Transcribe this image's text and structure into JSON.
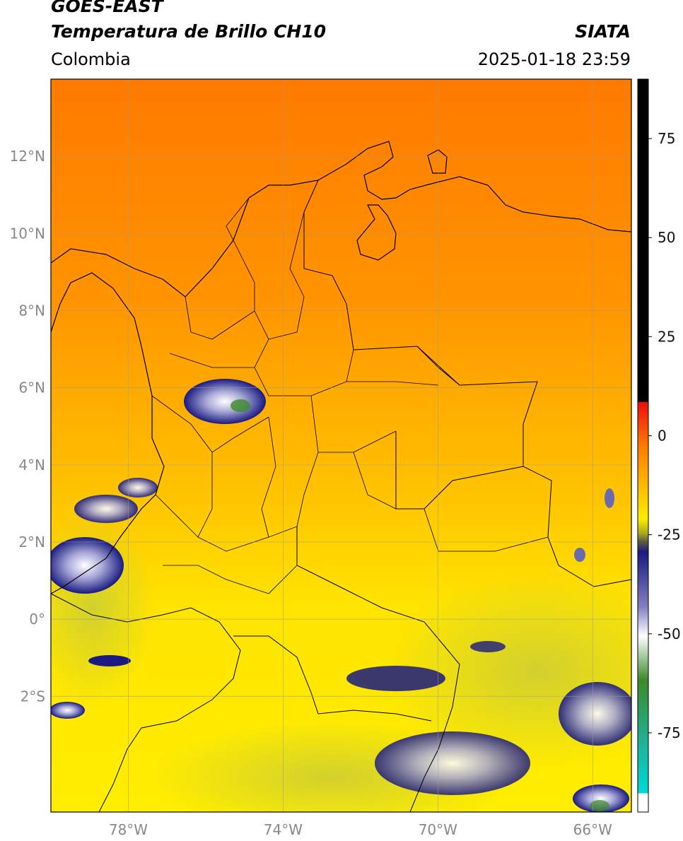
{
  "header": {
    "satellite": "GOES-EAST",
    "product": "Temperatura de Brillo CH10",
    "region": "Colombia",
    "source": "SIATA",
    "timestamp": "2025-01-18 23:59"
  },
  "map": {
    "lat_labels": [
      "12°N",
      "10°N",
      "8°N",
      "6°N",
      "4°N",
      "2°N",
      "0°",
      "2°S"
    ],
    "lon_labels": [
      "78°W",
      "74°W",
      "70°W",
      "66°W"
    ],
    "lat_values": [
      12,
      10,
      8,
      6,
      4,
      2,
      0,
      -2
    ],
    "lon_values": [
      -78,
      -74,
      -70,
      -66
    ],
    "extent": {
      "lon_min": -80,
      "lon_max": -65,
      "lat_min": -5,
      "lat_max": 14
    }
  },
  "colorbar": {
    "ticks": [
      75,
      50,
      25,
      0,
      -25,
      -50,
      -75
    ],
    "tick_labels": [
      "75",
      "50",
      "25",
      "0",
      "-25",
      "-50",
      "-75"
    ],
    "range": [
      -95,
      90
    ],
    "colors": {
      "black": "#000000",
      "red": "#e8100a",
      "orange": "#ff8a00",
      "yellow": "#ffee00",
      "olive": "#a8a820",
      "navy": "#1a1a80",
      "white": "#ffffff",
      "green": "#3c8a28",
      "cyan": "#00d8d8"
    }
  }
}
